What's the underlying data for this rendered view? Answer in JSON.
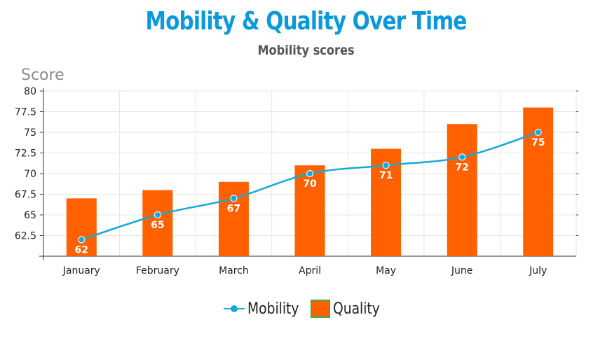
{
  "chart_data": {
    "type": "bar",
    "title": "Mobility & Quality Over Time",
    "subtitle": "Mobility scores",
    "ylabel": "Score",
    "xlabel": "",
    "categories": [
      "January",
      "February",
      "March",
      "April",
      "May",
      "June",
      "July"
    ],
    "ylim": [
      60,
      80
    ],
    "yticks": [
      "62.5",
      "65",
      "67.5",
      "70",
      "72.5",
      "75",
      "77.5",
      "80"
    ],
    "grid": true,
    "legend_position": "bottom",
    "series": [
      {
        "name": "Quality",
        "type": "bar",
        "color": "#ff6000",
        "values": [
          67,
          68,
          69,
          71,
          73,
          76,
          78
        ]
      },
      {
        "name": "Mobility",
        "type": "line",
        "color": "#14a9d8",
        "values": [
          62,
          65,
          67,
          70,
          71,
          72,
          75
        ],
        "data_labels": [
          "62",
          "65",
          "67",
          "70",
          "71",
          "72",
          "75"
        ]
      }
    ]
  }
}
